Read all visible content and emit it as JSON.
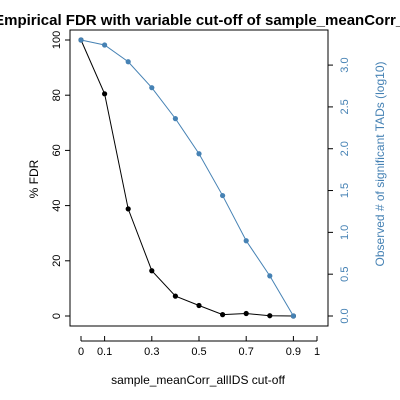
{
  "chart_data": {
    "type": "line",
    "title": "Empirical FDR with variable cut-off of sample_meanCorr_allIDS",
    "xlabel": "sample_meanCorr_allIDS cut-off",
    "ylabel": "% FDR",
    "ylabel_right": "Observed # of significant TADs (log10)",
    "x_ticks": [
      0,
      0.1,
      0.3,
      0.5,
      0.7,
      0.9,
      1
    ],
    "x_tick_labels": [
      "0",
      "0.1",
      "0.3",
      "0.5",
      "0.7",
      "0.9",
      "1"
    ],
    "xlim": [
      0,
      1
    ],
    "ylim": [
      0,
      100
    ],
    "y_ticks": [
      0,
      20,
      40,
      60,
      80,
      100
    ],
    "y_tick_labels": [
      "0",
      "20",
      "40",
      "60",
      "80",
      "100"
    ],
    "ylim_right": [
      0,
      3.3
    ],
    "y_ticks_right": [
      0,
      0.5,
      1,
      1.5,
      2,
      2.5,
      3
    ],
    "y_tick_labels_right": [
      "0.0",
      "0.5",
      "1.0",
      "1.5",
      "2.0",
      "2.5",
      "3.0"
    ],
    "grid": false,
    "legend": "none",
    "series": [
      {
        "axis": "left",
        "color": "#000000",
        "x": [
          0,
          0.1,
          0.2,
          0.3,
          0.4,
          0.5,
          0.6,
          0.7,
          0.8,
          0.9
        ],
        "values": [
          100,
          80.5,
          38.8,
          16.4,
          7.2,
          3.8,
          0.5,
          0.9,
          0.1,
          0
        ]
      },
      {
        "axis": "right",
        "color": "#4682b4",
        "x": [
          0,
          0.1,
          0.2,
          0.3,
          0.4,
          0.5,
          0.6,
          0.7,
          0.8,
          0.9
        ],
        "values": [
          3.3,
          3.24,
          3.04,
          2.73,
          2.36,
          1.94,
          1.44,
          0.9,
          0.48,
          0
        ]
      }
    ]
  }
}
